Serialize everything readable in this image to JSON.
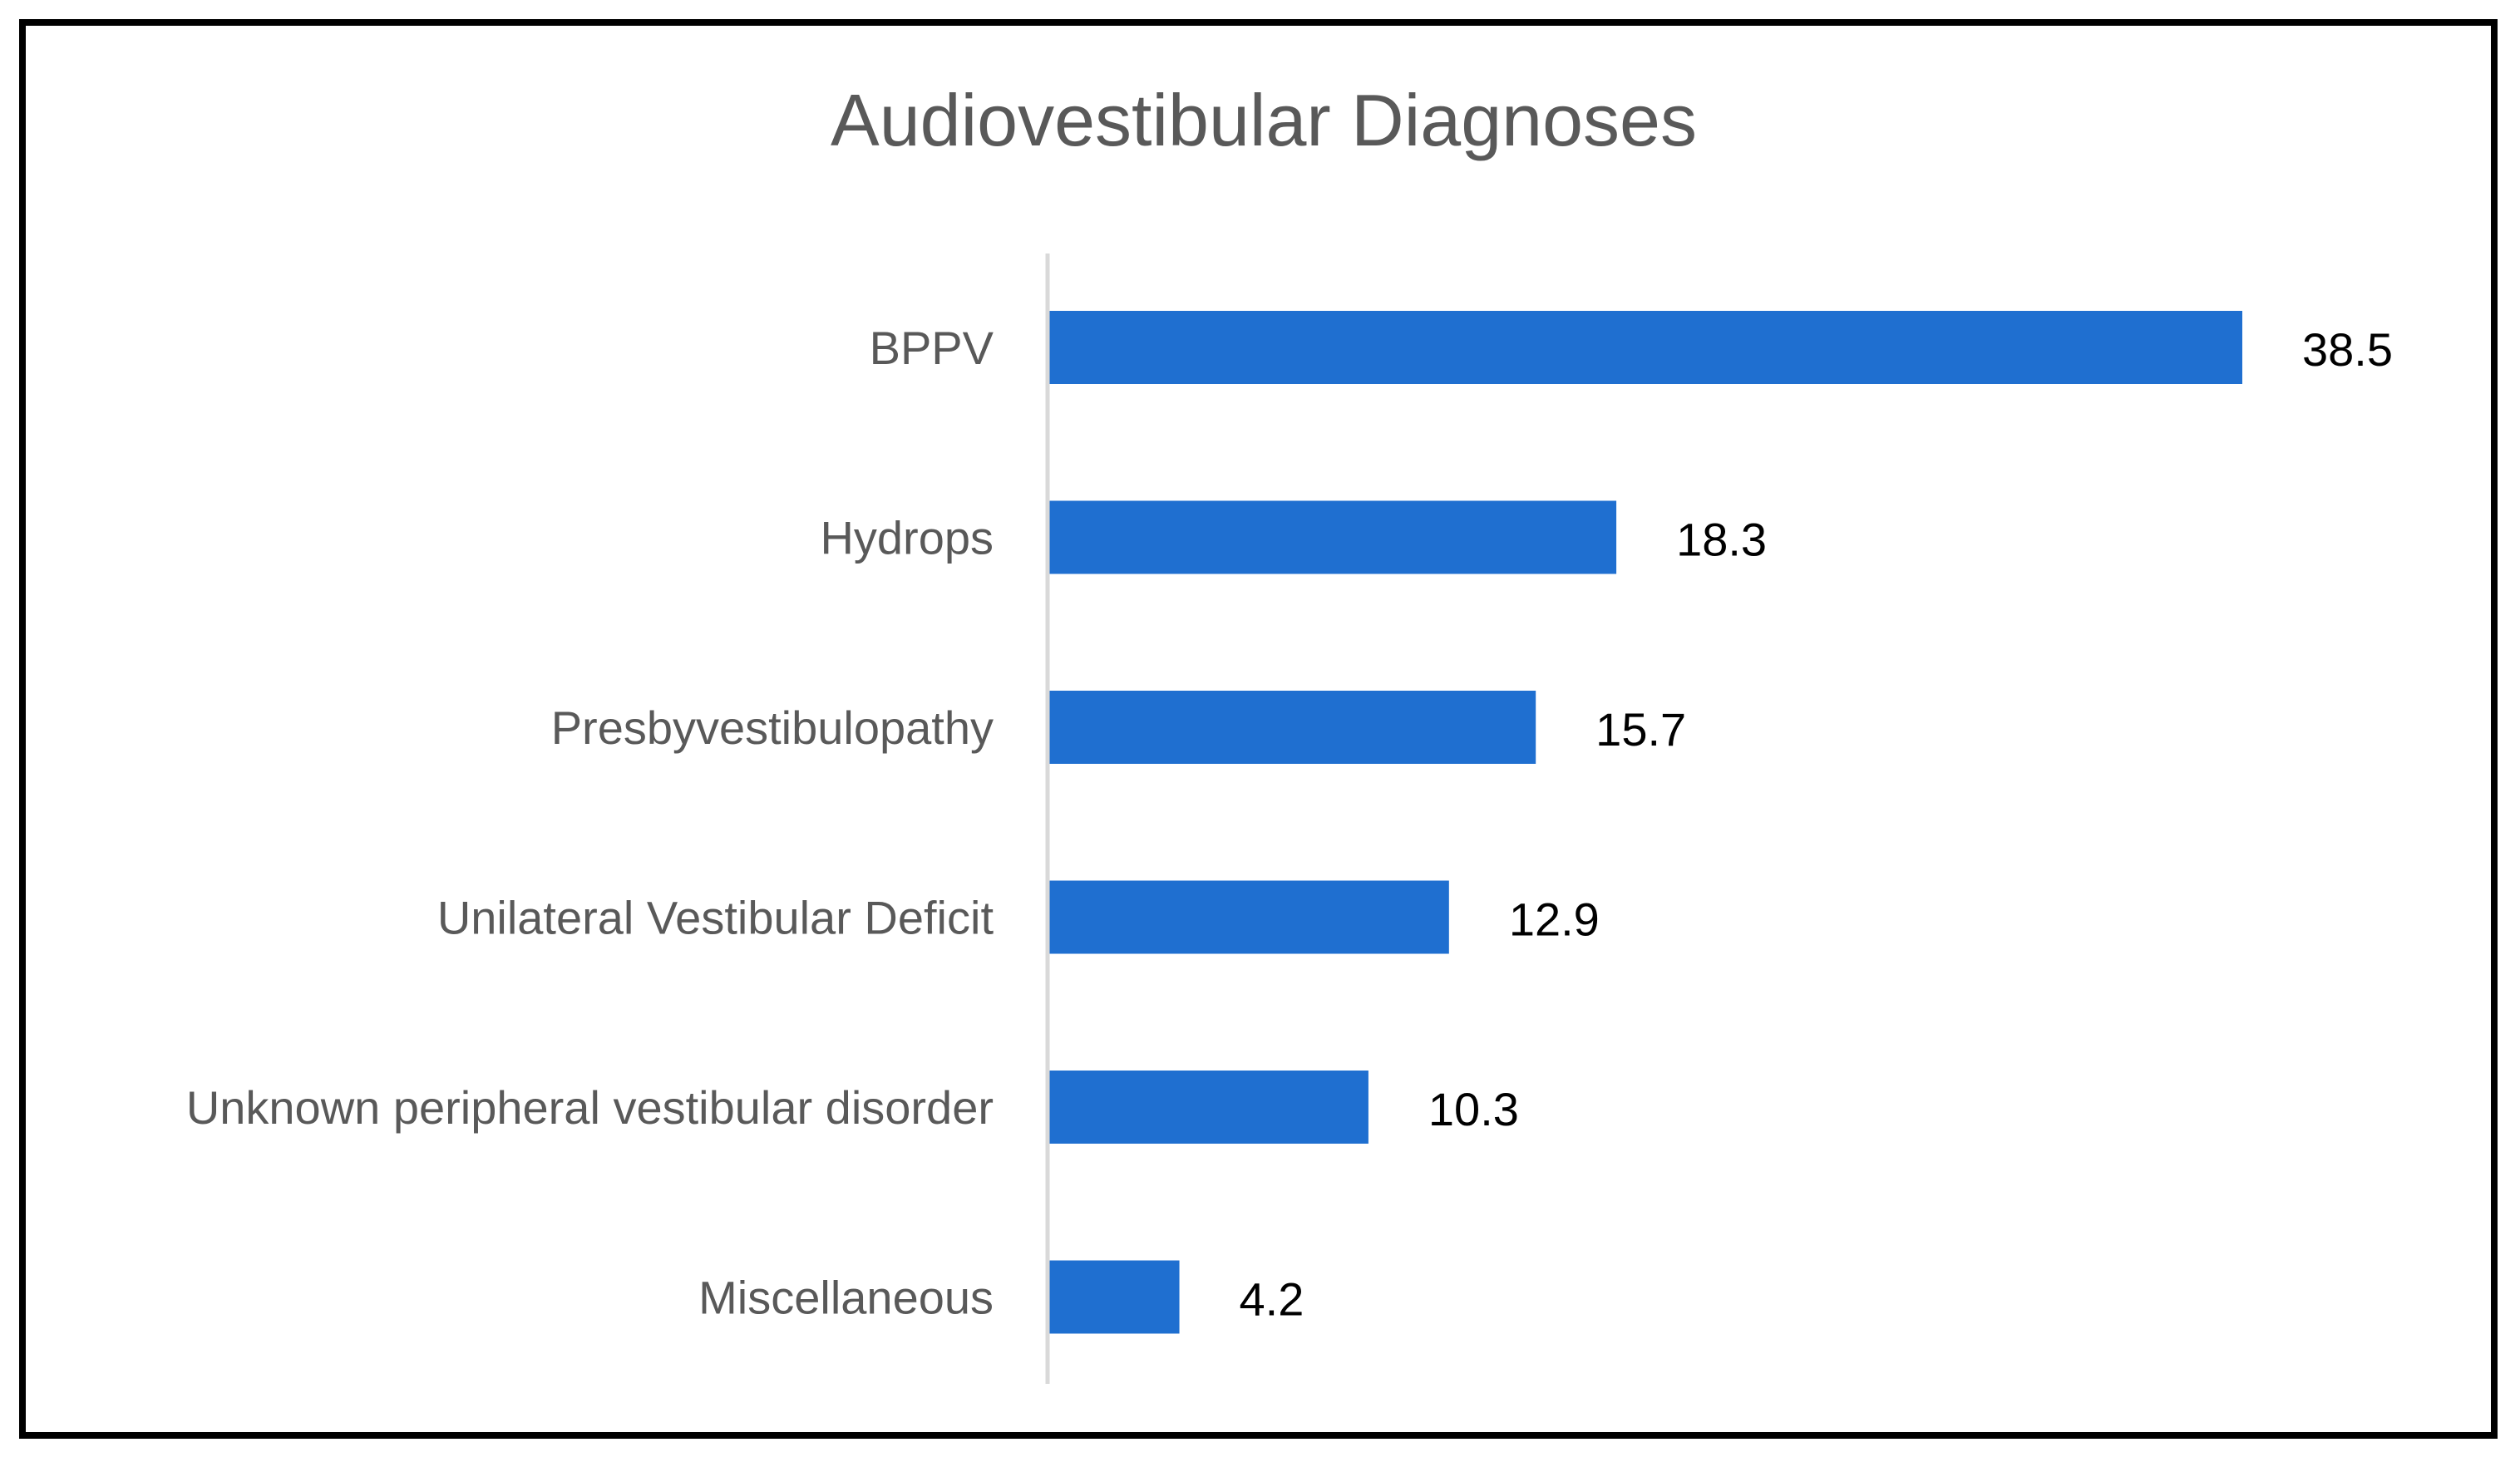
{
  "chart_data": {
    "type": "bar",
    "orientation": "horizontal",
    "title": "Audiovestibular Diagnoses",
    "xlabel": "",
    "ylabel": "",
    "categories": [
      "BPPV",
      "Hydrops",
      "Presbyvestibulopathy",
      "Unilateral Vestibular Deficit",
      "Unknown peripheral vestibular disorder",
      "Miscellaneous"
    ],
    "values": [
      38.5,
      18.3,
      15.7,
      12.9,
      10.3,
      4.2
    ],
    "data_labels": [
      "38.5",
      "18.3",
      "15.7",
      "12.9",
      "10.3",
      "4.2"
    ],
    "xlim": [
      0,
      40
    ],
    "grid": false,
    "legend": "none",
    "bar_color": "#1f6fd0",
    "axis_color": "#d9d9d9"
  }
}
